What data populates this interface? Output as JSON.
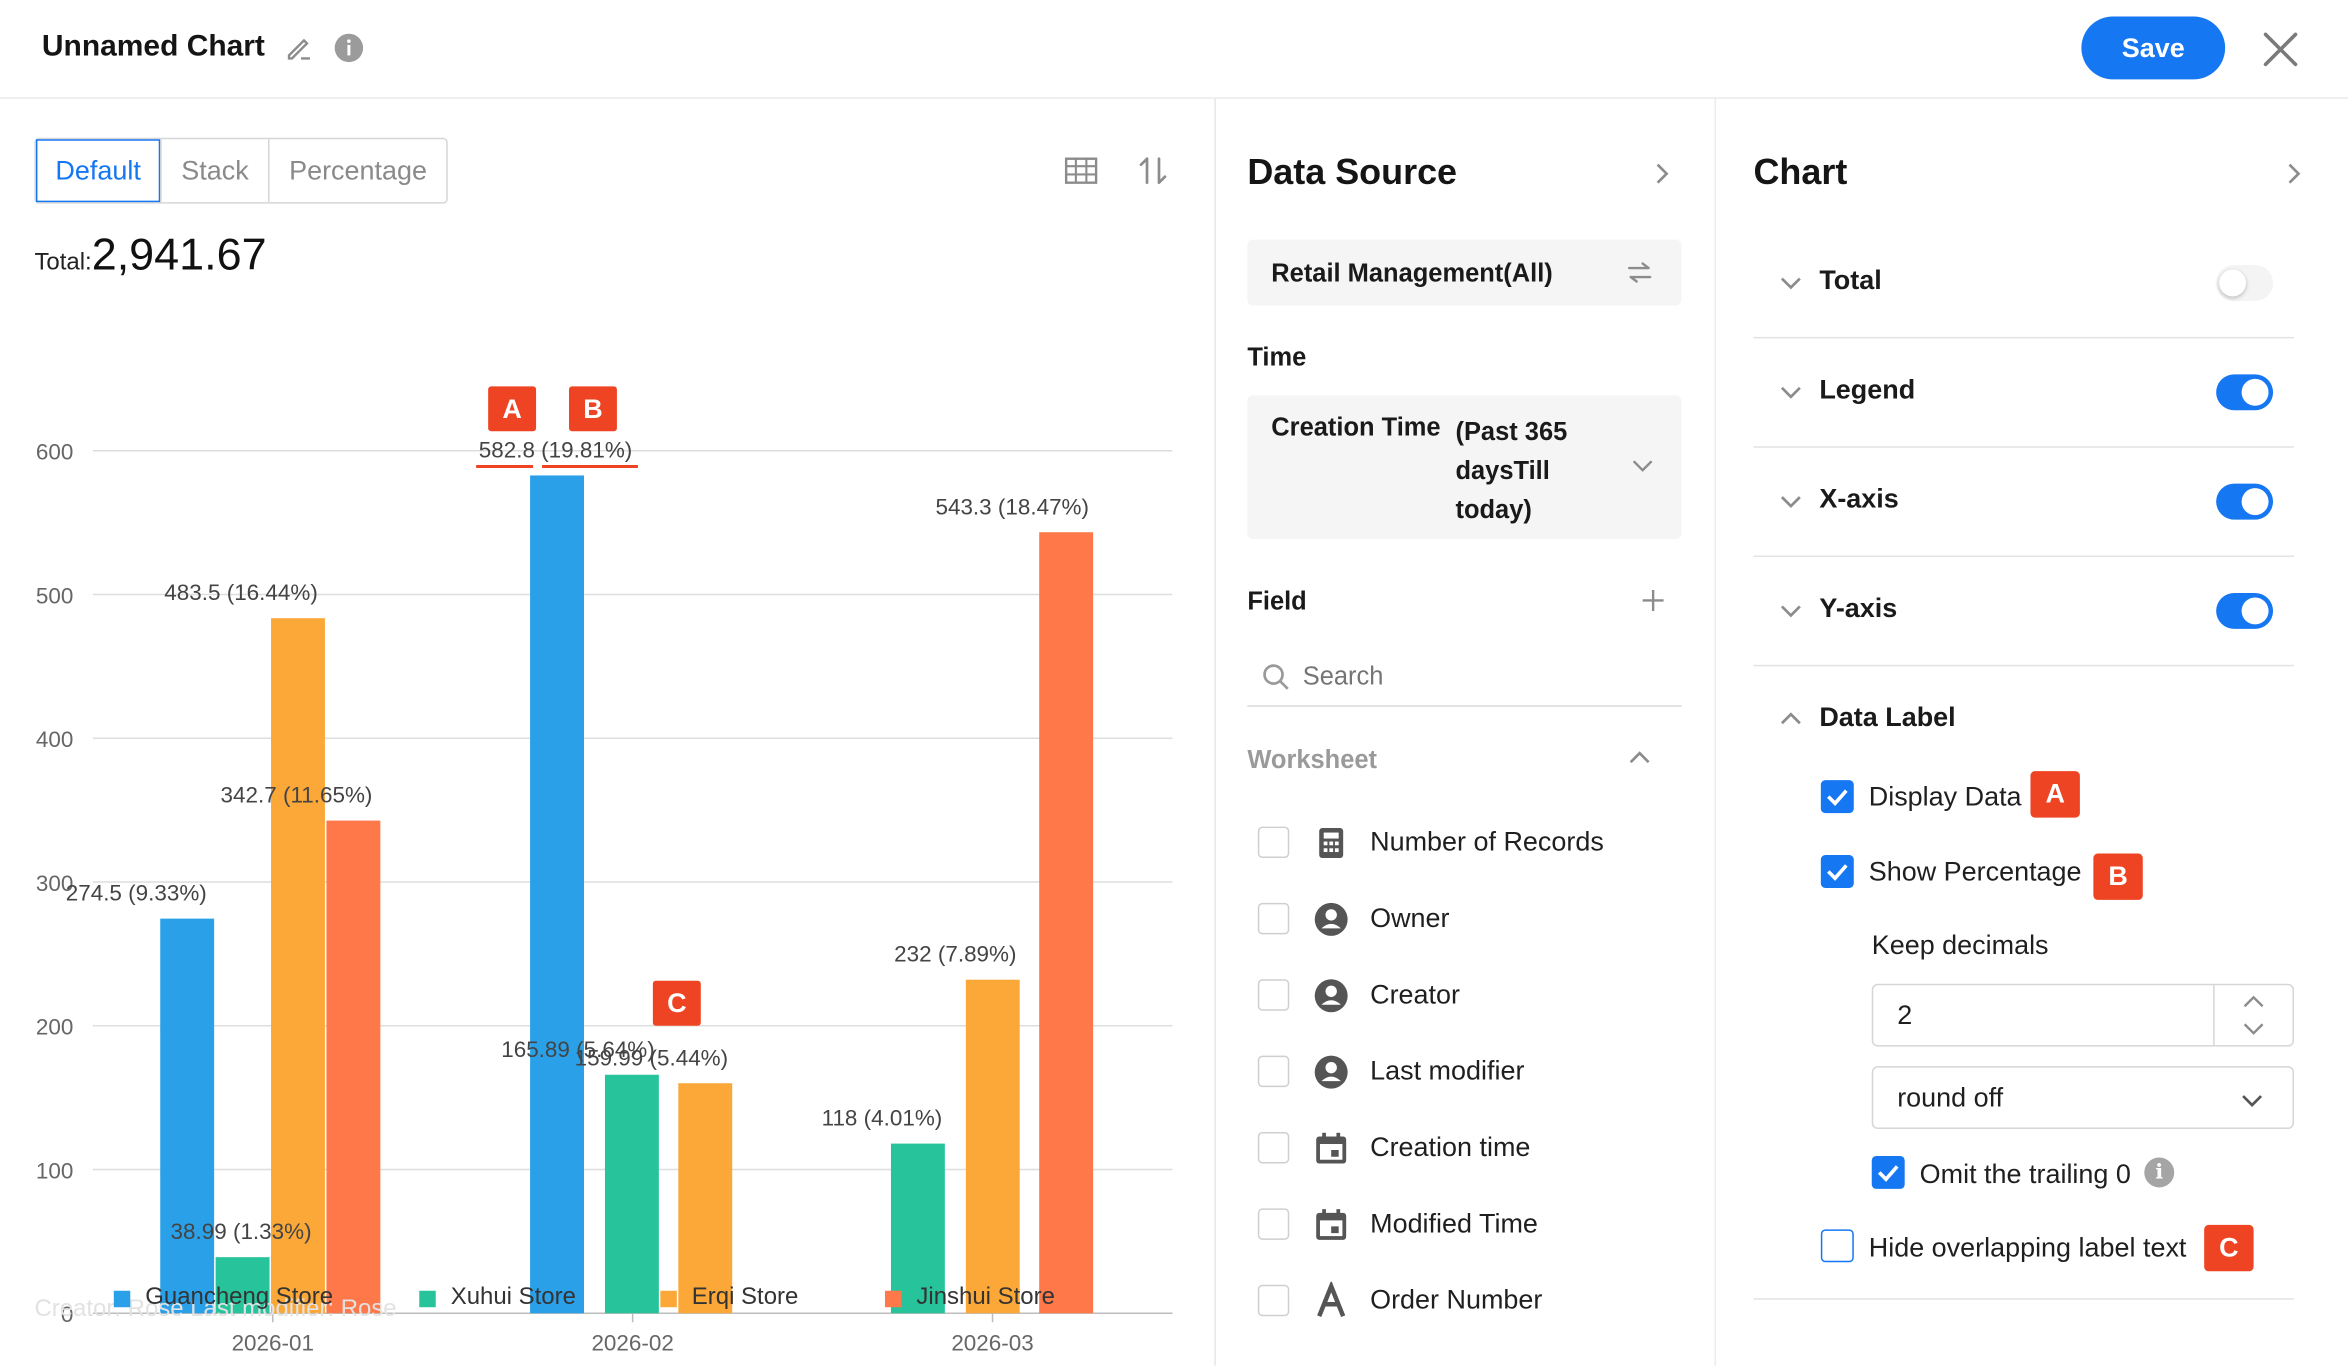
{
  "header": {
    "title": "Unnamed Chart",
    "save_label": "Save",
    "icons": [
      "edit-pencil-icon",
      "info-icon",
      "close-icon"
    ]
  },
  "chart_panel": {
    "tabs": [
      "Default",
      "Stack",
      "Percentage"
    ],
    "active_tab": "Default",
    "total_label": "Total:",
    "total_value": "2,941.67",
    "footer_faint": "Creator: Rose      Last modifier: Rose"
  },
  "chart_data": {
    "type": "bar",
    "categories": [
      "2026-01",
      "2026-02",
      "2026-03"
    ],
    "series": [
      {
        "name": "Guancheng Store",
        "color": "#2aa0e9",
        "values": [
          274.5,
          582.8,
          null
        ],
        "labels": [
          "274.5 (9.33%)",
          "582.8 (19.81%)",
          null
        ]
      },
      {
        "name": "Xuhui Store",
        "color": "#27c49c",
        "values": [
          38.99,
          165.89,
          118
        ],
        "labels": [
          "38.99 (1.33%)",
          "165.89 (5.64%)",
          "118 (4.01%)"
        ]
      },
      {
        "name": "Erqi Store",
        "color": "#fba838",
        "values": [
          483.5,
          159.99,
          232
        ],
        "labels": [
          "483.5 (16.44%)",
          "159.99 (5.44%)",
          "232 (7.89%)"
        ]
      },
      {
        "name": "Jinshui Store",
        "color": "#fe784a",
        "values": [
          342.7,
          null,
          543.3
        ],
        "labels": [
          "342.7 (11.65%)",
          null,
          "543.3 (18.47%)"
        ]
      }
    ],
    "y_ticks": [
      "0",
      "100",
      "200",
      "300",
      "400",
      "500",
      "600"
    ],
    "ylim": [
      0,
      600
    ],
    "grid": true,
    "legend": "bottom",
    "callouts": [
      "A",
      "B",
      "C"
    ]
  },
  "data_source": {
    "title": "Data Source",
    "source_name": "Retail Management(All)",
    "time_label": "Time",
    "time_key": "Creation Time",
    "time_value": "(Past 365 daysTill today)",
    "field_label": "Field",
    "search_placeholder": "Search",
    "worksheet_label": "Worksheet",
    "fields": [
      {
        "label": "Number of Records",
        "icon": "calculator-icon"
      },
      {
        "label": "Owner",
        "icon": "user-icon"
      },
      {
        "label": "Creator",
        "icon": "user-icon"
      },
      {
        "label": "Last modifier",
        "icon": "user-icon"
      },
      {
        "label": "Creation time",
        "icon": "calendar-icon"
      },
      {
        "label": "Modified Time",
        "icon": "calendar-icon"
      },
      {
        "label": "Order Number",
        "icon": "text-icon"
      }
    ]
  },
  "chart_settings": {
    "title": "Chart",
    "sections": [
      {
        "label": "Total",
        "enabled": false
      },
      {
        "label": "Legend",
        "enabled": true
      },
      {
        "label": "X-axis",
        "enabled": true
      },
      {
        "label": "Y-axis",
        "enabled": true
      }
    ],
    "data_label": {
      "label": "Data Label",
      "display_data": {
        "label": "Display Data",
        "checked": true,
        "badge": "A"
      },
      "show_percentage": {
        "label": "Show Percentage",
        "checked": true,
        "badge": "B"
      },
      "keep_decimals_label": "Keep decimals",
      "keep_decimals_value": "2",
      "rounding": "round off",
      "omit_trailing": {
        "label": "Omit the trailing 0",
        "checked": true
      },
      "hide_overlap": {
        "label": "Hide overlapping label text",
        "checked": false,
        "badge": "C"
      }
    }
  },
  "colors": {
    "accent": "#1677f2",
    "badge": "#ee4423"
  }
}
